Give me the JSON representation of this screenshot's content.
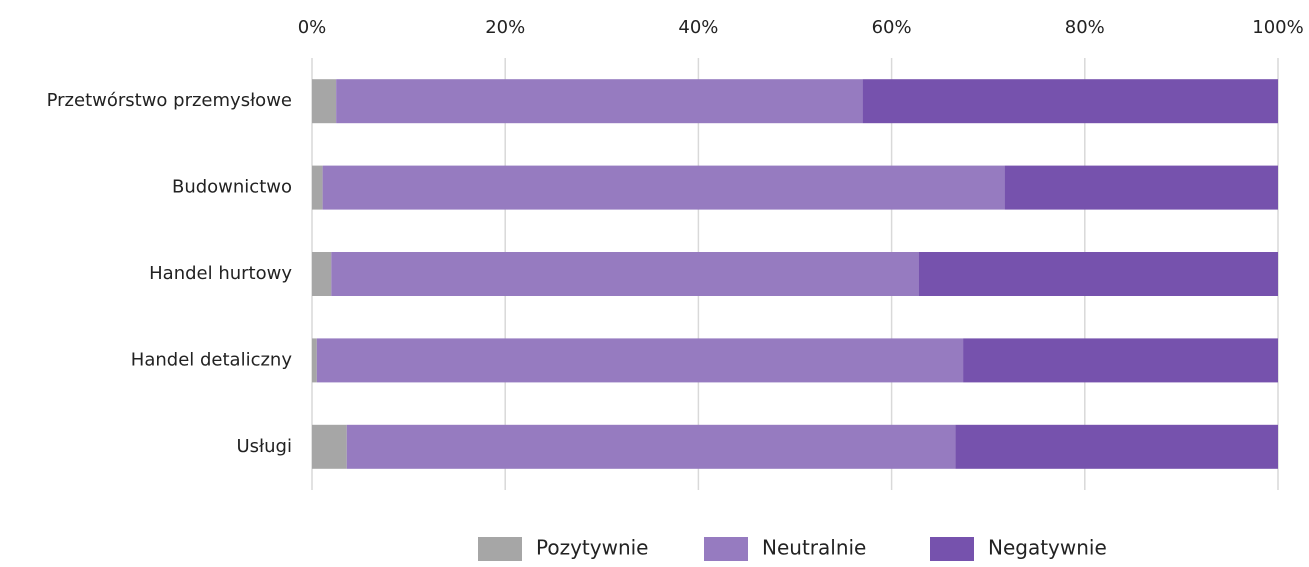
{
  "chart_data": {
    "type": "stacked_barh",
    "categories": [
      "Przetwórstwo przemysłowe",
      "Budownictwo",
      "Handel hurtowy",
      "Handel detaliczny",
      "Usługi"
    ],
    "series": [
      {
        "name": "Pozytywnie",
        "color": "#a6a6a6",
        "values": [
          2.5,
          1.1,
          2.0,
          0.5,
          3.6
        ]
      },
      {
        "name": "Neutralnie",
        "color": "#967bc0",
        "values": [
          54.5,
          70.6,
          60.8,
          66.9,
          63.0
        ]
      },
      {
        "name": "Negatywnie",
        "color": "#7652ad",
        "values": [
          43.0,
          28.3,
          37.2,
          32.6,
          33.4
        ]
      }
    ],
    "xlim": [
      0,
      100
    ],
    "xticks": [
      {
        "value": 0,
        "label": "0%"
      },
      {
        "value": 20,
        "label": "20%"
      },
      {
        "value": 40,
        "label": "40%"
      },
      {
        "value": 60,
        "label": "60%"
      },
      {
        "value": 80,
        "label": "80%"
      },
      {
        "value": 100,
        "label": "100%"
      }
    ],
    "grid": true,
    "legend": "bottom"
  }
}
